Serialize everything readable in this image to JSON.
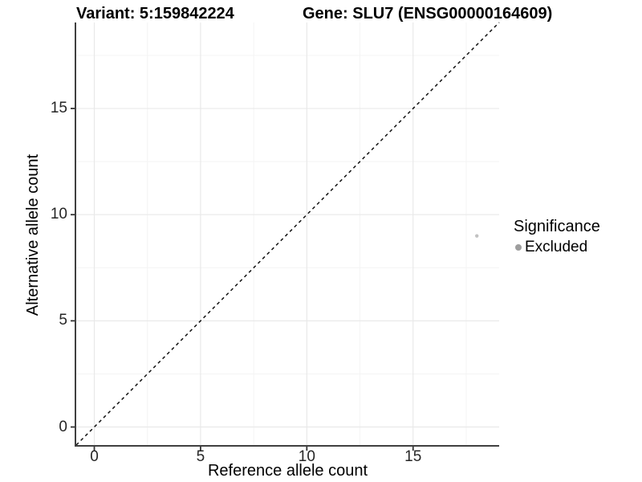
{
  "title": {
    "variant": "Variant: 5:159842224",
    "gene": "Gene: SLU7 (ENSG00000164609)"
  },
  "chart_data": {
    "type": "scatter",
    "title": "Variant: 5:159842224   Gene: SLU7 (ENSG00000164609)",
    "xlabel": "Reference allele count",
    "ylabel": "Alternative allele count",
    "xlim": [
      -0.85,
      19.05
    ],
    "ylim": [
      -0.85,
      19.05
    ],
    "x_ticks": [
      0,
      5,
      10,
      15
    ],
    "y_ticks": [
      0,
      5,
      10,
      15
    ],
    "x_minor_gridlines": [
      2.5,
      7.5,
      12.5,
      17.5
    ],
    "y_minor_gridlines": [
      2.5,
      7.5,
      12.5,
      17.5
    ],
    "grid": true,
    "points": [
      {
        "x": 18,
        "y": 9,
        "series": "Excluded"
      }
    ],
    "identity_line": {
      "shown": true,
      "style": "dashed",
      "color": "#111111"
    },
    "legend": {
      "position": "right",
      "title": "Significance",
      "items": [
        {
          "label": "Excluded",
          "color": "#9e9e9e"
        }
      ]
    },
    "colors": {
      "point": "#c2c2c2",
      "axis_line": "#404040",
      "tick_mark": "#333333",
      "grid_major": "#e9e9e9",
      "grid_minor": "#f4f4f4",
      "background": "#ffffff"
    }
  }
}
